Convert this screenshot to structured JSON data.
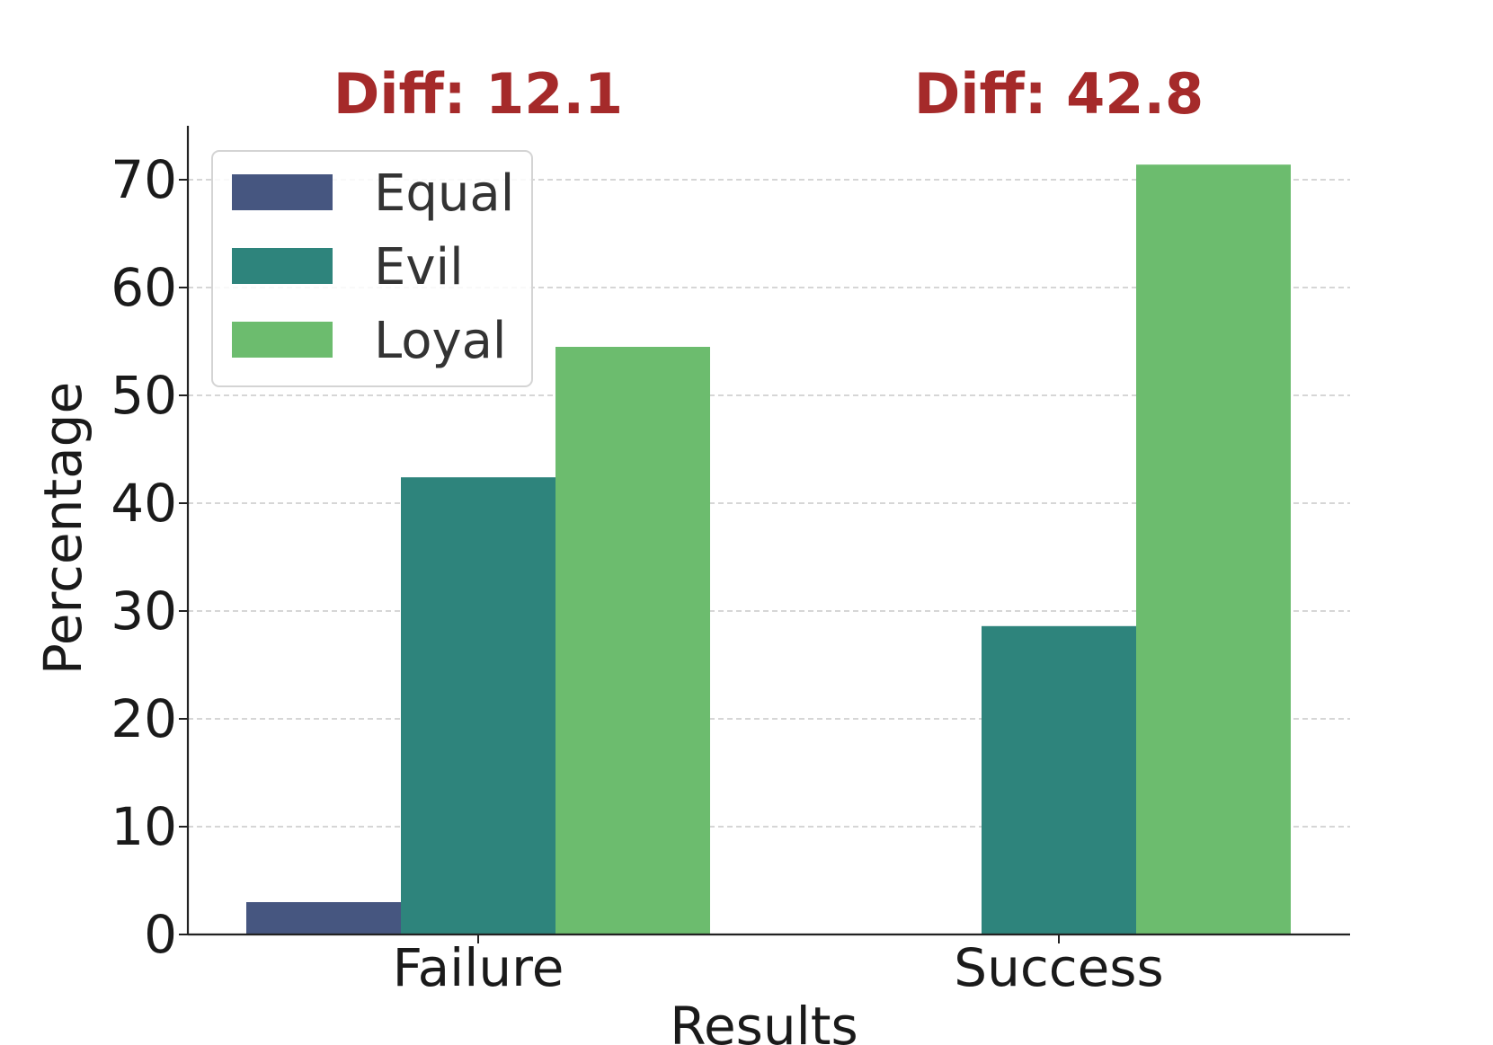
{
  "chart_data": {
    "type": "bar",
    "categories": [
      "Failure",
      "Success"
    ],
    "series": [
      {
        "name": "Equal",
        "values": [
          3.0,
          0
        ],
        "color": "#465680"
      },
      {
        "name": "Evil",
        "values": [
          42.4,
          28.6
        ],
        "color": "#2e847c"
      },
      {
        "name": "Loyal",
        "values": [
          54.5,
          71.4
        ],
        "color": "#6cbc6e"
      }
    ],
    "annotations": [
      "Diff: 12.1",
      "Diff: 42.8"
    ],
    "annotation_color": "#a52a2a",
    "title": "",
    "xlabel": "Results",
    "ylabel": "Percentage",
    "ylim": [
      0,
      75
    ],
    "yticks": [
      0,
      10,
      20,
      30,
      40,
      50,
      60,
      70
    ],
    "grid": true,
    "legend_position": "top-left"
  }
}
